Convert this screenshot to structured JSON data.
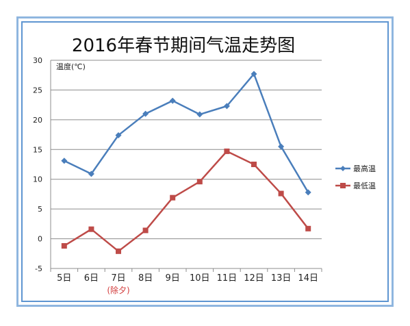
{
  "chart_data": {
    "type": "line",
    "title": "2016年春节期间气温走势图",
    "ylabel": "温度(℃)",
    "categories": [
      "5日",
      "6日",
      "7日",
      "8日",
      "9日",
      "10日",
      "11日",
      "12日",
      "13日",
      "14日"
    ],
    "annotations": [
      {
        "category": "7日",
        "text": "(除夕)"
      }
    ],
    "ylim": [
      -5,
      30
    ],
    "yticks": [
      "30",
      "25",
      "20",
      "15",
      "10",
      "5",
      "0",
      "-5"
    ],
    "grid": true,
    "legend_position": "right",
    "series": [
      {
        "name": "最高温",
        "color": "#4a7ebb",
        "marker": "diamond",
        "values": [
          13.1,
          10.9,
          17.4,
          21.0,
          23.2,
          20.9,
          22.3,
          27.7,
          15.5,
          7.8
        ]
      },
      {
        "name": "最低温",
        "color": "#be4b48",
        "marker": "square",
        "values": [
          -1.2,
          1.6,
          -2.1,
          1.4,
          6.9,
          9.6,
          14.7,
          12.5,
          7.6,
          1.7
        ]
      }
    ]
  }
}
